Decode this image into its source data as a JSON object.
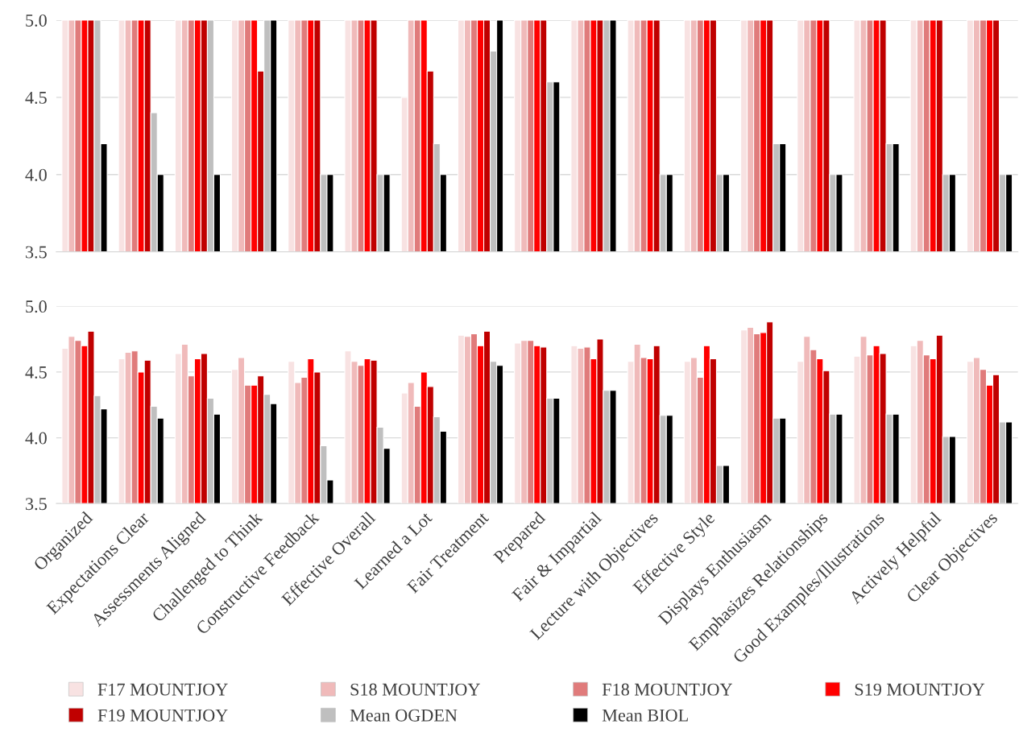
{
  "chart_data": [
    {
      "type": "bar",
      "categories": [
        null,
        null,
        null,
        null,
        null,
        null,
        null,
        null,
        null,
        null,
        null,
        null,
        null,
        null,
        null,
        null,
        null
      ],
      "series": [
        {
          "color": "#f8e2e2",
          "values": [
            5,
            5,
            5,
            5,
            5,
            5,
            4.5,
            5,
            5,
            5,
            5,
            5,
            5,
            5,
            5,
            5,
            5
          ]
        },
        {
          "color": "#f0baba",
          "values": [
            5,
            5,
            5,
            5,
            5,
            5,
            5,
            5,
            5,
            5,
            5,
            5,
            5,
            5,
            5,
            5,
            5
          ]
        },
        {
          "color": "#e07b7b",
          "values": [
            5,
            5,
            5,
            5,
            5,
            5,
            5,
            5,
            5,
            5,
            5,
            5,
            5,
            5,
            5,
            5,
            5
          ]
        },
        {
          "color": "#ff0000",
          "values": [
            5,
            5,
            5,
            5,
            5,
            5,
            5,
            5,
            5,
            5,
            5,
            5,
            5,
            5,
            5,
            5,
            5
          ]
        },
        {
          "color": "#c00000",
          "values": [
            5,
            5,
            5,
            4.67,
            5,
            5,
            4.67,
            5,
            5,
            5,
            5,
            5,
            5,
            5,
            5,
            5,
            5
          ]
        },
        {
          "color": "#bfbfbf",
          "values": [
            5,
            4.4,
            5,
            5,
            4,
            4,
            4.2,
            4.8,
            4.6,
            5,
            4,
            4,
            4.2,
            4,
            4.2,
            4,
            4
          ]
        },
        {
          "color": "#000000",
          "values": [
            4.2,
            4,
            4,
            5,
            4,
            4,
            4,
            5,
            4.6,
            5,
            4,
            4,
            4.2,
            4,
            4.2,
            4,
            4
          ]
        }
      ],
      "ylim": [
        3.5,
        5.0
      ],
      "yticks": [
        {
          "value": 3.5,
          "label": "3.5"
        },
        {
          "value": 4.0,
          "label": "4.0"
        },
        {
          "value": 4.5,
          "label": "4.5"
        },
        {
          "value": 5.0,
          "label": "5.0"
        }
      ],
      "grid": "y",
      "tick_labels": "y"
    },
    {
      "type": "bar",
      "categories": [
        "Organized",
        "Expectations Clear",
        "Assessments Aligned",
        "Challenged to Think",
        "Constructive Feedback",
        "Effective Overall",
        "Learned a Lot",
        "Fair Treatment",
        "Prepared",
        "Fair & Impartial",
        "Lecture with Objectives",
        "Effective Style",
        "Displays Enthusiasm",
        "Emphasizes Relationships",
        "Good Examples/Illustrations",
        "Actively Helpful",
        "Clear Objectives"
      ],
      "series": [
        {
          "name": "F17 MOUNTJOY",
          "color": "#f8e2e2",
          "values": [
            4.68,
            4.6,
            4.64,
            4.52,
            4.58,
            4.66,
            4.34,
            4.78,
            4.72,
            4.7,
            4.58,
            4.58,
            4.82,
            4.58,
            4.62,
            4.7,
            4.58
          ]
        },
        {
          "name": "S18 MOUNTJOY",
          "color": "#f0baba",
          "values": [
            4.77,
            4.65,
            4.71,
            4.61,
            4.42,
            4.58,
            4.42,
            4.77,
            4.74,
            4.68,
            4.71,
            4.61,
            4.84,
            4.77,
            4.77,
            4.74,
            4.61
          ]
        },
        {
          "name": "F18 MOUNTJOY",
          "color": "#e07b7b",
          "values": [
            4.74,
            4.66,
            4.47,
            4.4,
            4.46,
            4.55,
            4.24,
            4.79,
            4.74,
            4.69,
            4.61,
            4.46,
            4.79,
            4.67,
            4.63,
            4.63,
            4.52
          ]
        },
        {
          "name": "S19 MOUNTJOY",
          "color": "#ff0000",
          "values": [
            4.7,
            4.5,
            4.6,
            4.4,
            4.6,
            4.6,
            4.5,
            4.7,
            4.7,
            4.6,
            4.6,
            4.7,
            4.8,
            4.6,
            4.7,
            4.6,
            4.4
          ]
        },
        {
          "name": "F19 MOUNTJOY",
          "color": "#c00000",
          "values": [
            4.81,
            4.59,
            4.64,
            4.47,
            4.5,
            4.59,
            4.39,
            4.81,
            4.69,
            4.75,
            4.7,
            4.6,
            4.88,
            4.51,
            4.64,
            4.78,
            4.48
          ]
        },
        {
          "name": "Mean OGDEN",
          "color": "#bfbfbf",
          "values": [
            4.32,
            4.24,
            4.3,
            4.33,
            3.94,
            4.08,
            4.16,
            4.58,
            4.3,
            4.36,
            4.17,
            3.79,
            4.15,
            4.18,
            4.18,
            4.01,
            4.12
          ]
        },
        {
          "name": "Mean BIOL",
          "color": "#000000",
          "values": [
            4.22,
            4.15,
            4.18,
            4.26,
            3.68,
            3.92,
            4.05,
            4.55,
            4.3,
            4.36,
            4.17,
            3.79,
            4.15,
            4.18,
            4.18,
            4.01,
            4.12
          ]
        }
      ],
      "ylim": [
        3.5,
        5.0
      ],
      "yticks": [
        {
          "value": 3.5,
          "label": "3.5"
        },
        {
          "value": 4.0,
          "label": "4.0"
        },
        {
          "value": 4.5,
          "label": "4.5"
        },
        {
          "value": 5.0,
          "label": "5.0"
        }
      ],
      "grid": "y",
      "legend": "bottom"
    }
  ]
}
